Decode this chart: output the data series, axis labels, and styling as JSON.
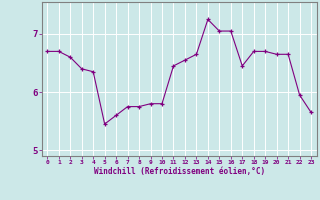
{
  "x": [
    0,
    1,
    2,
    3,
    4,
    5,
    6,
    7,
    8,
    9,
    10,
    11,
    12,
    13,
    14,
    15,
    16,
    17,
    18,
    19,
    20,
    21,
    22,
    23
  ],
  "y": [
    6.7,
    6.7,
    6.6,
    6.4,
    6.35,
    5.45,
    5.6,
    5.75,
    5.75,
    5.8,
    5.8,
    6.45,
    6.55,
    6.65,
    7.25,
    7.05,
    7.05,
    6.45,
    6.7,
    6.7,
    6.65,
    6.65,
    5.95,
    5.65
  ],
  "line_color": "#800080",
  "marker": "+",
  "marker_color": "#800080",
  "bg_color": "#cce8e8",
  "grid_color": "#b0d8d8",
  "xlabel": "Windchill (Refroidissement éolien,°C)",
  "xlabel_color": "#800080",
  "tick_color": "#800080",
  "spine_color": "#808080",
  "ylim": [
    4.9,
    7.55
  ],
  "xlim": [
    -0.5,
    23.5
  ],
  "yticks": [
    5,
    6,
    7
  ],
  "xticks": [
    0,
    1,
    2,
    3,
    4,
    5,
    6,
    7,
    8,
    9,
    10,
    11,
    12,
    13,
    14,
    15,
    16,
    17,
    18,
    19,
    20,
    21,
    22,
    23
  ],
  "figsize": [
    3.2,
    2.0
  ],
  "dpi": 100
}
